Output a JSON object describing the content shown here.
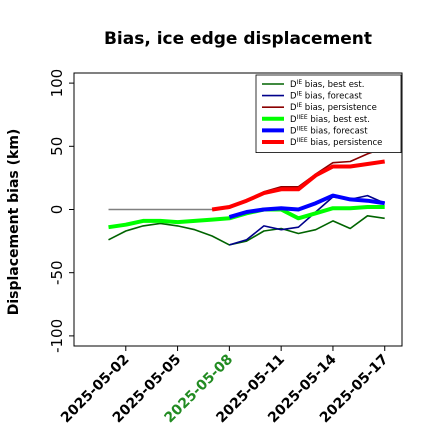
{
  "chart_data": {
    "type": "line",
    "title": "Bias, ice edge displacement",
    "ylabel": "Displacement bias (km)",
    "xlabel": "",
    "ylim": [
      -108,
      108
    ],
    "yticks": [
      -100,
      -50,
      0,
      50,
      100
    ],
    "xlim": [
      "2025-04-29",
      "2025-05-18"
    ],
    "xticks": [
      "2025-05-02",
      "2025-05-05",
      "2025-05-08",
      "2025-05-11",
      "2025-05-14",
      "2025-05-17"
    ],
    "xtick_colors": [
      "#000000",
      "#000000",
      "#228b22",
      "#000000",
      "#000000",
      "#000000"
    ],
    "grid": false,
    "legend_position": "top-right",
    "zero_line": {
      "x": [
        "2025-05-01",
        "2025-05-07"
      ],
      "y": 0,
      "color": "#808080"
    },
    "series": [
      {
        "name": "D^IE bias, best est.",
        "legend_main": "D",
        "legend_sup": "IE",
        "legend_rest": " bias, best est.",
        "color": "#006400",
        "width": 1.6,
        "x": [
          "2025-05-01",
          "2025-05-02",
          "2025-05-03",
          "2025-05-04",
          "2025-05-05",
          "2025-05-06",
          "2025-05-07",
          "2025-05-08",
          "2025-05-09",
          "2025-05-10",
          "2025-05-11",
          "2025-05-12",
          "2025-05-13",
          "2025-05-14",
          "2025-05-15",
          "2025-05-16",
          "2025-05-17"
        ],
        "y": [
          -24,
          -17,
          -13,
          -11,
          -13,
          -16,
          -21,
          -28,
          -25,
          -17,
          -15,
          -19,
          -16,
          -9,
          -15,
          -5,
          -7
        ]
      },
      {
        "name": "D^IE bias, forecast",
        "legend_main": "D",
        "legend_sup": "IE",
        "legend_rest": " bias, forecast",
        "color": "#00008b",
        "width": 1.6,
        "x": [
          "2025-05-08",
          "2025-05-09",
          "2025-05-10",
          "2025-05-11",
          "2025-05-12",
          "2025-05-13",
          "2025-05-14",
          "2025-05-15",
          "2025-05-16",
          "2025-05-17"
        ],
        "y": [
          -28,
          -24,
          -13,
          -16,
          -14,
          -2,
          10,
          8,
          11,
          5
        ]
      },
      {
        "name": "D^IE bias, persistence",
        "legend_main": "D",
        "legend_sup": "IE",
        "legend_rest": " bias, persistence",
        "color": "#8b0000",
        "width": 1.6,
        "x": [
          "2025-05-07",
          "2025-05-08",
          "2025-05-09",
          "2025-05-10",
          "2025-05-11",
          "2025-05-12",
          "2025-05-13",
          "2025-05-14",
          "2025-05-15",
          "2025-05-16",
          "2025-05-17"
        ],
        "y": [
          0,
          1,
          7,
          14,
          18,
          18,
          28,
          37,
          38,
          44,
          49
        ]
      },
      {
        "name": "D^IIEE bias, best est.",
        "legend_main": "D",
        "legend_sup": "IIEE",
        "legend_rest": " bias, best est.",
        "color": "#00ff00",
        "width": 4,
        "x": [
          "2025-05-01",
          "2025-05-02",
          "2025-05-03",
          "2025-05-04",
          "2025-05-05",
          "2025-05-06",
          "2025-05-07",
          "2025-05-08",
          "2025-05-09",
          "2025-05-10",
          "2025-05-11",
          "2025-05-12",
          "2025-05-13",
          "2025-05-14",
          "2025-05-15",
          "2025-05-16",
          "2025-05-17"
        ],
        "y": [
          -14,
          -12,
          -9,
          -9,
          -10,
          -9,
          -8,
          -7,
          -3,
          0,
          0,
          -7,
          -3,
          1,
          1,
          2,
          2
        ]
      },
      {
        "name": "D^IIEE bias, forecast",
        "legend_main": "D",
        "legend_sup": "IIEE",
        "legend_rest": " bias, forecast",
        "color": "#0000ff",
        "width": 4,
        "x": [
          "2025-05-08",
          "2025-05-09",
          "2025-05-10",
          "2025-05-11",
          "2025-05-12",
          "2025-05-13",
          "2025-05-14",
          "2025-05-15",
          "2025-05-16",
          "2025-05-17"
        ],
        "y": [
          -6,
          -2,
          0,
          1,
          0,
          5,
          11,
          8,
          7,
          5
        ]
      },
      {
        "name": "D^IIEE bias, persistence",
        "legend_main": "D",
        "legend_sup": "IIEE",
        "legend_rest": " bias, persistence",
        "color": "#ff0000",
        "width": 4,
        "x": [
          "2025-05-07",
          "2025-05-08",
          "2025-05-09",
          "2025-05-10",
          "2025-05-11",
          "2025-05-12",
          "2025-05-13",
          "2025-05-14",
          "2025-05-15",
          "2025-05-16",
          "2025-05-17"
        ],
        "y": [
          0,
          2,
          7,
          13,
          16,
          16,
          27,
          34,
          34,
          36,
          38
        ]
      }
    ]
  }
}
